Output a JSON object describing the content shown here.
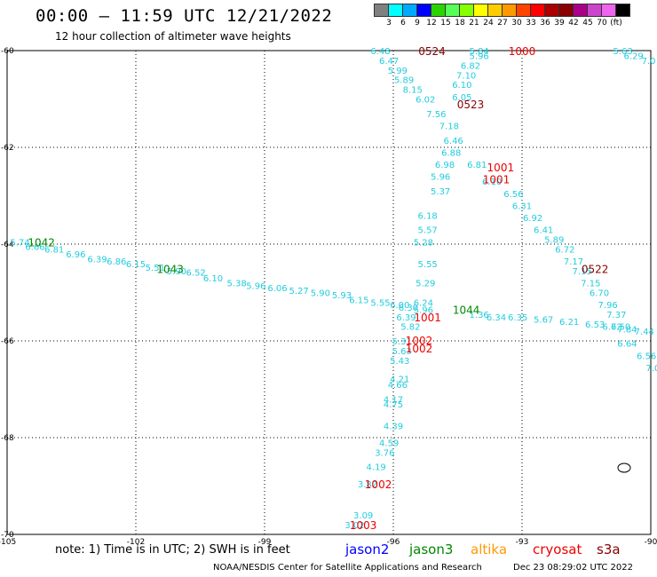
{
  "header": {
    "title": "00:00 – 11:59 UTC 12/21/2022",
    "subtitle": "12 hour collection of altimeter wave heights"
  },
  "legend": {
    "colors": [
      "#808080",
      "#00ffff",
      "#00aaff",
      "#0000ff",
      "#2bd400",
      "#55ff55",
      "#88ff00",
      "#ffff00",
      "#ffcc00",
      "#ff9900",
      "#ff4400",
      "#ff0000",
      "#aa0000",
      "#880000",
      "#aa0088",
      "#cc44cc",
      "#ee66ee",
      "#000000"
    ],
    "labels": [
      "3",
      "6",
      "9",
      "12",
      "15",
      "18",
      "21",
      "24",
      "27",
      "30",
      "33",
      "36",
      "39",
      "42",
      "45",
      "70",
      "(ft)"
    ]
  },
  "map": {
    "lon_ticks": [
      "-105",
      "-102",
      "-99",
      "-96",
      "-93",
      "-90"
    ],
    "lat_ticks": [
      "-60",
      "-62",
      "-64",
      "-66",
      "-68",
      "-70"
    ],
    "lon_range": [
      -105,
      -90
    ],
    "lat_range": [
      -60,
      -70
    ]
  },
  "footer": {
    "note": "note:  1) Time is in UTC;  2) SWH is in feet",
    "credit": "NOAA/NESDIS Center for Satellite Applications and Research",
    "stamp": "Dec 23 08:29:02 UTC 2022"
  },
  "satellites": [
    {
      "name": "jason2",
      "color": "#0000ff"
    },
    {
      "name": "jason3",
      "color": "#008800"
    },
    {
      "name": "altika",
      "color": "#ff9900"
    },
    {
      "name": "cryosat",
      "color": "#ee0000"
    },
    {
      "name": "s3a",
      "color": "#880000"
    }
  ],
  "track_labels": [
    {
      "text": "1042",
      "lon": -104.2,
      "lat": -63.95,
      "color": "#008800"
    },
    {
      "text": "1043",
      "lon": -101.2,
      "lat": -64.5,
      "color": "#008800"
    },
    {
      "text": "1044",
      "lon": -94.3,
      "lat": -65.35,
      "color": "#008800"
    },
    {
      "text": "0524",
      "lon": -95.1,
      "lat": -60.0,
      "color": "#880000"
    },
    {
      "text": "0523",
      "lon": -94.2,
      "lat": -61.1,
      "color": "#880000"
    },
    {
      "text": "0522",
      "lon": -91.3,
      "lat": -64.5,
      "color": "#880000"
    },
    {
      "text": "1000",
      "lon": -93.0,
      "lat": -60.0,
      "color": "#ee0000"
    },
    {
      "text": "1001",
      "lon": -93.5,
      "lat": -62.4,
      "color": "#ee0000"
    },
    {
      "text": "1001",
      "lon": -93.6,
      "lat": -62.65,
      "color": "#ee0000"
    },
    {
      "text": "1001",
      "lon": -95.2,
      "lat": -65.5,
      "color": "#ee0000"
    },
    {
      "text": "1002",
      "lon": -95.4,
      "lat": -65.98,
      "color": "#ee0000"
    },
    {
      "text": "1002",
      "lon": -95.4,
      "lat": -66.15,
      "color": "#ee0000"
    },
    {
      "text": "1002",
      "lon": -96.35,
      "lat": -68.95,
      "color": "#ee0000"
    },
    {
      "text": "1003",
      "lon": -96.7,
      "lat": -69.8,
      "color": "#ee0000"
    }
  ],
  "wave_heights": [
    {
      "v": "5.74",
      "lon": -104.7,
      "lat": -63.95
    },
    {
      "v": "6.66",
      "lon": -104.35,
      "lat": -64.05
    },
    {
      "v": "6.81",
      "lon": -103.9,
      "lat": -64.1
    },
    {
      "v": "6.96",
      "lon": -103.4,
      "lat": -64.2
    },
    {
      "v": "6.39",
      "lon": -102.9,
      "lat": -64.3
    },
    {
      "v": "6.86",
      "lon": -102.45,
      "lat": -64.35
    },
    {
      "v": "6.15",
      "lon": -102.0,
      "lat": -64.4
    },
    {
      "v": "5.51",
      "lon": -101.55,
      "lat": -64.48
    },
    {
      "v": "5.90",
      "lon": -101.05,
      "lat": -64.55
    },
    {
      "v": "6.52",
      "lon": -100.6,
      "lat": -64.58
    },
    {
      "v": "6.10",
      "lon": -100.2,
      "lat": -64.7
    },
    {
      "v": "5.38",
      "lon": -99.65,
      "lat": -64.8
    },
    {
      "v": "5.96",
      "lon": -99.2,
      "lat": -64.85
    },
    {
      "v": "6.06",
      "lon": -98.7,
      "lat": -64.9
    },
    {
      "v": "5.27",
      "lon": -98.2,
      "lat": -64.95
    },
    {
      "v": "5.90",
      "lon": -97.7,
      "lat": -65.0
    },
    {
      "v": "5.93",
      "lon": -97.2,
      "lat": -65.05
    },
    {
      "v": "6.15",
      "lon": -96.8,
      "lat": -65.15
    },
    {
      "v": "5.55",
      "lon": -96.3,
      "lat": -65.2
    },
    {
      "v": "6.00",
      "lon": -95.85,
      "lat": -65.25
    },
    {
      "v": "6.30",
      "lon": -95.65,
      "lat": -65.3
    },
    {
      "v": "5.96",
      "lon": -95.3,
      "lat": -65.35
    },
    {
      "v": "1.36",
      "lon": -94.0,
      "lat": -65.45
    },
    {
      "v": "6.34",
      "lon": -93.6,
      "lat": -65.5
    },
    {
      "v": "6.35",
      "lon": -93.1,
      "lat": -65.5
    },
    {
      "v": "5.67",
      "lon": -92.5,
      "lat": -65.55
    },
    {
      "v": "6.21",
      "lon": -91.9,
      "lat": -65.6
    },
    {
      "v": "6.53",
      "lon": -91.3,
      "lat": -65.65
    },
    {
      "v": "6.72",
      "lon": -90.9,
      "lat": -65.7
    },
    {
      "v": "7.84",
      "lon": -90.55,
      "lat": -65.75
    },
    {
      "v": "7.44",
      "lon": -90.15,
      "lat": -65.8
    },
    {
      "v": "6.48",
      "lon": -96.3,
      "lat": -60.0
    },
    {
      "v": "6.47",
      "lon": -96.1,
      "lat": -60.2
    },
    {
      "v": "5.99",
      "lon": -95.9,
      "lat": -60.4
    },
    {
      "v": "5.89",
      "lon": -95.75,
      "lat": -60.6
    },
    {
      "v": "8.15",
      "lon": -95.55,
      "lat": -60.8
    },
    {
      "v": "6.02",
      "lon": -95.25,
      "lat": -61.0
    },
    {
      "v": "7.56",
      "lon": -95.0,
      "lat": -61.3
    },
    {
      "v": "7.18",
      "lon": -94.7,
      "lat": -61.55
    },
    {
      "v": "6.46",
      "lon": -94.6,
      "lat": -61.85
    },
    {
      "v": "6.88",
      "lon": -94.65,
      "lat": -62.1
    },
    {
      "v": "6.98",
      "lon": -94.8,
      "lat": -62.35
    },
    {
      "v": "5.96",
      "lon": -94.9,
      "lat": -62.6
    },
    {
      "v": "5.37",
      "lon": -94.9,
      "lat": -62.9
    },
    {
      "v": "6.18",
      "lon": -95.2,
      "lat": -63.4
    },
    {
      "v": "5.57",
      "lon": -95.2,
      "lat": -63.7
    },
    {
      "v": "5.28",
      "lon": -95.3,
      "lat": -63.95
    },
    {
      "v": "5.55",
      "lon": -95.2,
      "lat": -64.4
    },
    {
      "v": "5.29",
      "lon": -95.25,
      "lat": -64.8
    },
    {
      "v": "6.24",
      "lon": -95.3,
      "lat": -65.2
    },
    {
      "v": "6.39",
      "lon": -95.7,
      "lat": -65.5
    },
    {
      "v": "5.82",
      "lon": -95.6,
      "lat": -65.7
    },
    {
      "v": "5.31",
      "lon": -95.8,
      "lat": -66.0
    },
    {
      "v": "5.63",
      "lon": -95.8,
      "lat": -66.2
    },
    {
      "v": "5.43",
      "lon": -95.85,
      "lat": -66.4
    },
    {
      "v": "4.21",
      "lon": -95.85,
      "lat": -66.78
    },
    {
      "v": "4.66",
      "lon": -95.9,
      "lat": -66.9
    },
    {
      "v": "4.17",
      "lon": -96.0,
      "lat": -67.2
    },
    {
      "v": "4.75",
      "lon": -96.0,
      "lat": -67.3
    },
    {
      "v": "4.39",
      "lon": -96.0,
      "lat": -67.75
    },
    {
      "v": "4.59",
      "lon": -96.1,
      "lat": -68.1
    },
    {
      "v": "3.76",
      "lon": -96.2,
      "lat": -68.3
    },
    {
      "v": "4.19",
      "lon": -96.4,
      "lat": -68.6
    },
    {
      "v": "3.82",
      "lon": -96.6,
      "lat": -68.95
    },
    {
      "v": "3.09",
      "lon": -96.7,
      "lat": -69.6
    },
    {
      "v": "3.02",
      "lon": -96.9,
      "lat": -69.8
    },
    {
      "v": "5.84",
      "lon": -94.0,
      "lat": -60.0
    },
    {
      "v": "5.96",
      "lon": -94.0,
      "lat": -60.1
    },
    {
      "v": "6.82",
      "lon": -94.2,
      "lat": -60.3
    },
    {
      "v": "7.10",
      "lon": -94.3,
      "lat": -60.5
    },
    {
      "v": "6.10",
      "lon": -94.4,
      "lat": -60.7
    },
    {
      "v": "6.05",
      "lon": -94.4,
      "lat": -60.95
    },
    {
      "v": "6.81",
      "lon": -94.05,
      "lat": -62.35
    },
    {
      "v": "6.10",
      "lon": -93.7,
      "lat": -62.7
    },
    {
      "v": "6.56",
      "lon": -93.2,
      "lat": -62.95
    },
    {
      "v": "6.31",
      "lon": -93.0,
      "lat": -63.2
    },
    {
      "v": "6.92",
      "lon": -92.75,
      "lat": -63.45
    },
    {
      "v": "6.41",
      "lon": -92.5,
      "lat": -63.7
    },
    {
      "v": "5.89",
      "lon": -92.25,
      "lat": -63.9
    },
    {
      "v": "6.72",
      "lon": -92.0,
      "lat": -64.1
    },
    {
      "v": "7.17",
      "lon": -91.8,
      "lat": -64.35
    },
    {
      "v": "7.15",
      "lon": -91.6,
      "lat": -64.55
    },
    {
      "v": "7.15",
      "lon": -91.4,
      "lat": -64.8
    },
    {
      "v": "6.70",
      "lon": -91.2,
      "lat": -65.0
    },
    {
      "v": "7.96",
      "lon": -91.0,
      "lat": -65.25
    },
    {
      "v": "7.37",
      "lon": -90.8,
      "lat": -65.45
    },
    {
      "v": "6.50",
      "lon": -90.7,
      "lat": -65.7
    },
    {
      "v": "6.64",
      "lon": -90.55,
      "lat": -66.05
    },
    {
      "v": "6.56",
      "lon": -90.1,
      "lat": -66.3
    },
    {
      "v": "7.0",
      "lon": -89.95,
      "lat": -66.55
    },
    {
      "v": "5.63",
      "lon": -90.65,
      "lat": -60.0
    },
    {
      "v": "6.29",
      "lon": -90.4,
      "lat": -60.1
    },
    {
      "v": "7.0",
      "lon": -90.05,
      "lat": -60.2
    }
  ]
}
